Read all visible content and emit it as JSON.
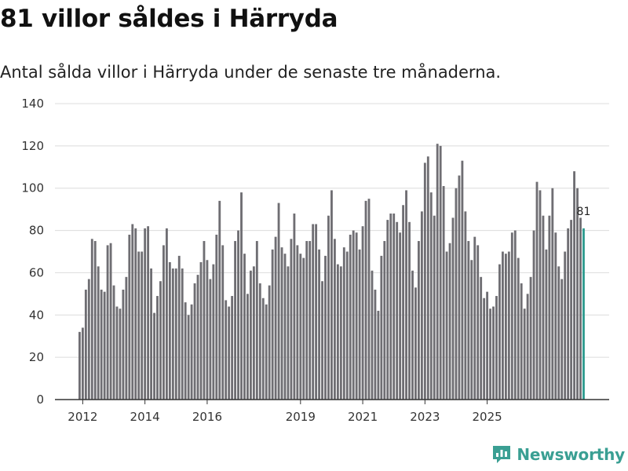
{
  "title": "81 villor såldes i Härryda",
  "subtitle": "Antal sålda villor i Härryda under de senaste tre månaderna.",
  "brand": {
    "name": "Newsworthy",
    "icon": "newsworthy-logo-icon"
  },
  "colors": {
    "bar": "#6f6e73",
    "highlight": "#2e9b8f",
    "grid": "#dcdcdc",
    "axis": "#333333",
    "brand": "#3a9f93"
  },
  "chart_data": {
    "type": "bar",
    "title": "81 villor såldes i Härryda",
    "xlabel": "",
    "ylabel": "",
    "ylim": [
      0,
      140
    ],
    "yticks": [
      0,
      20,
      40,
      60,
      80,
      100,
      120,
      140
    ],
    "x_tick_labels": [
      {
        "label": "2012",
        "index": 1
      },
      {
        "label": "2014",
        "index": 21
      },
      {
        "label": "2016",
        "index": 41
      },
      {
        "label": "2019",
        "index": 71
      },
      {
        "label": "2021",
        "index": 91
      },
      {
        "label": "2023",
        "index": 111
      },
      {
        "label": "2025",
        "index": 131
      }
    ],
    "start": "2011-11",
    "period": "rolling three-month count, monthly",
    "values": [
      32,
      34,
      52,
      57,
      76,
      75,
      63,
      52,
      51,
      73,
      74,
      54,
      44,
      43,
      52,
      58,
      78,
      83,
      81,
      70,
      70,
      81,
      82,
      62,
      41,
      49,
      56,
      73,
      81,
      65,
      62,
      62,
      68,
      62,
      46,
      40,
      45,
      55,
      59,
      65,
      75,
      66,
      57,
      64,
      78,
      94,
      73,
      47,
      44,
      49,
      75,
      80,
      98,
      69,
      50,
      61,
      63,
      75,
      55,
      48,
      45,
      54,
      71,
      77,
      93,
      72,
      69,
      63,
      76,
      88,
      73,
      69,
      67,
      75,
      75,
      83,
      83,
      71,
      56,
      68,
      87,
      99,
      76,
      64,
      63,
      72,
      70,
      78,
      80,
      79,
      71,
      82,
      94,
      95,
      61,
      52,
      42,
      68,
      75,
      85,
      88,
      88,
      84,
      79,
      92,
      99,
      84,
      61,
      53,
      75,
      89,
      112,
      115,
      98,
      87,
      121,
      120,
      101,
      70,
      74,
      86,
      100,
      106,
      113,
      89,
      75,
      66,
      77,
      73,
      58,
      48,
      51,
      43,
      44,
      49,
      64,
      70,
      69,
      70,
      79,
      80,
      67,
      55,
      43,
      50,
      58,
      80,
      103,
      99,
      87,
      71,
      87,
      100,
      79,
      63,
      57,
      70,
      81,
      85,
      108,
      100,
      86,
      81
    ],
    "last_value_label": "81",
    "highlight_last": true
  }
}
